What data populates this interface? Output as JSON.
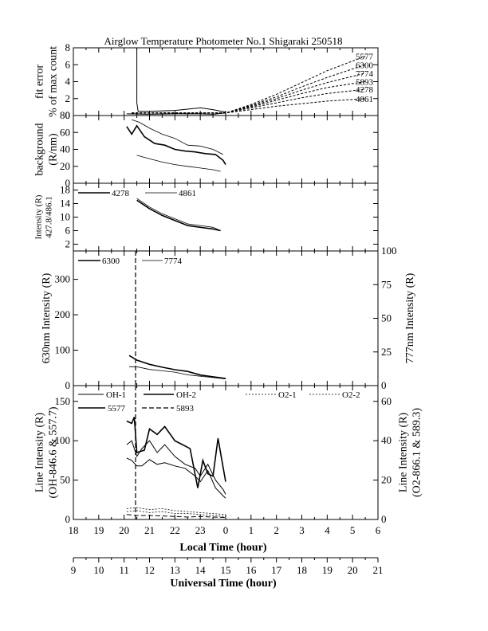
{
  "title": "Airglow Temperature Photometer No.1   Shigaraki   250518",
  "x_axes": {
    "local": {
      "label": "Local Time (hour)",
      "ticks": [
        "18",
        "19",
        "20",
        "21",
        "22",
        "23",
        "0",
        "1",
        "2",
        "3",
        "4",
        "5",
        "6"
      ]
    },
    "ut": {
      "label": "Universal Time (hour)",
      "ticks": [
        "9",
        "10",
        "11",
        "12",
        "13",
        "14",
        "15",
        "16",
        "17",
        "18",
        "19",
        "20",
        "21"
      ]
    }
  },
  "chart_data": [
    {
      "id": "fit_error",
      "type": "line",
      "ylabel": [
        "fit error",
        "% of max count"
      ],
      "ylim": [
        0,
        8
      ],
      "yticks": [
        0,
        2,
        4,
        6,
        8
      ],
      "x_range_lt": [
        18,
        30
      ],
      "series": [
        {
          "name": "5577",
          "dash": "3,2",
          "x": [
            20.3,
            21,
            22,
            23,
            24,
            25,
            26,
            27,
            28,
            29.5
          ],
          "y": [
            0.3,
            0.3,
            0.3,
            0.3,
            0.3,
            1.3,
            2.5,
            3.9,
            5.3,
            7.0
          ]
        },
        {
          "name": "6300",
          "dash": "3,2",
          "x": [
            20.3,
            21,
            22,
            23,
            24,
            25,
            26,
            27,
            28,
            29.5
          ],
          "y": [
            0.3,
            0.3,
            0.3,
            0.3,
            0.3,
            1.2,
            2.2,
            3.4,
            4.5,
            6.0
          ]
        },
        {
          "name": "7774",
          "dash": "3,2",
          "x": [
            20.3,
            21,
            22,
            23,
            24,
            25,
            26,
            27,
            28,
            29.5
          ],
          "y": [
            0.3,
            0.3,
            0.3,
            0.3,
            0.3,
            1.1,
            2.0,
            3.0,
            3.9,
            5.0
          ]
        },
        {
          "name": "5893",
          "dash": "3,2",
          "x": [
            20.3,
            21,
            22,
            23,
            24,
            25,
            26,
            27,
            28,
            29.5
          ],
          "y": [
            0.3,
            0.3,
            0.3,
            0.3,
            0.3,
            1.0,
            1.8,
            2.6,
            3.3,
            4.0
          ]
        },
        {
          "name": "4278",
          "dash": "3,2",
          "x": [
            20.3,
            21,
            22,
            23,
            24,
            25,
            26,
            27,
            28,
            29.5
          ],
          "y": [
            0.3,
            0.3,
            0.3,
            0.3,
            0.3,
            0.9,
            1.5,
            2.1,
            2.6,
            3.1
          ]
        },
        {
          "name": "4861",
          "dash": "3,2",
          "x": [
            20.3,
            21,
            22,
            23,
            24,
            25,
            26,
            27,
            28,
            29.5
          ],
          "y": [
            0.3,
            0.3,
            0.3,
            0.3,
            0.3,
            0.7,
            1.1,
            1.4,
            1.7,
            2.0
          ]
        },
        {
          "name": "",
          "dash": "",
          "x": [
            20.5,
            20.5,
            20.55,
            21,
            22,
            23,
            23.5,
            24
          ],
          "y": [
            8,
            1.5,
            0.5,
            0.5,
            0.6,
            0.9,
            0.7,
            0.4
          ]
        },
        {
          "name": "",
          "dash": "",
          "x": [
            20.1,
            21,
            22,
            23,
            23.5,
            24
          ],
          "y": [
            0.2,
            0.15,
            0.2,
            0.2,
            0.15,
            0.3
          ]
        }
      ]
    },
    {
      "id": "background",
      "type": "line",
      "ylabel": [
        "background",
        "(R/nm)"
      ],
      "ylim": [
        0,
        80
      ],
      "yticks": [
        0,
        20,
        40,
        60,
        80
      ],
      "x_range_lt": [
        18,
        30
      ],
      "series": [
        {
          "name": "",
          "width": 1.6,
          "x": [
            20.1,
            20.3,
            20.5,
            20.8,
            21.2,
            21.6,
            22.0,
            22.4,
            22.8,
            23.2,
            23.6,
            23.9,
            24.0
          ],
          "y": [
            67,
            58,
            68,
            55,
            47,
            45,
            40,
            38,
            37,
            35,
            34,
            27,
            22
          ]
        },
        {
          "name": "",
          "width": 0.8,
          "x": [
            20.3,
            20.6,
            21.0,
            21.5,
            22.0,
            22.5,
            23.0,
            23.5,
            23.9
          ],
          "y": [
            75,
            72,
            65,
            58,
            53,
            45,
            44,
            40,
            34
          ]
        },
        {
          "name": "",
          "width": 0.8,
          "x": [
            20.5,
            21.0,
            21.5,
            22.0,
            22.5,
            23.0,
            23.5,
            23.8
          ],
          "y": [
            33,
            29,
            25,
            22,
            20,
            18,
            16,
            14
          ]
        }
      ]
    },
    {
      "id": "blue_intensity",
      "type": "line",
      "ylabel": [
        "Intensity (R)",
        "427.8/486.1"
      ],
      "ylim": [
        0,
        20
      ],
      "yticks": [
        2,
        6,
        10,
        14,
        18
      ],
      "x_range_lt": [
        18,
        30
      ],
      "series": [
        {
          "name": "4278",
          "width": 1.6,
          "x": [
            20.5,
            21.0,
            21.5,
            22.0,
            22.5,
            23.0,
            23.5,
            23.8
          ],
          "y": [
            15,
            12.5,
            10.5,
            9,
            7.5,
            7,
            6.5,
            6
          ]
        },
        {
          "name": "4861",
          "width": 0.8,
          "x": [
            20.5,
            21.0,
            21.5,
            22.0,
            22.5,
            23.0,
            23.5,
            23.8
          ],
          "y": [
            15.5,
            13,
            11,
            9.5,
            8,
            7.5,
            7,
            6
          ]
        }
      ]
    },
    {
      "id": "red_intensity",
      "type": "line",
      "ylabel": [
        "630nm Intensity (R)"
      ],
      "ylabel_right": [
        "777nm Intensity (R)"
      ],
      "ylim": [
        0,
        380
      ],
      "yticks": [
        0,
        100,
        200,
        300
      ],
      "ylim_right": [
        0,
        100
      ],
      "yticks_right": [
        0,
        25,
        50,
        75,
        100
      ],
      "x_range_lt": [
        18,
        30
      ],
      "series": [
        {
          "name": "6300",
          "width": 1.6,
          "axis": "left",
          "x": [
            20.2,
            20.5,
            21.0,
            21.5,
            22.0,
            22.5,
            23.0,
            23.5,
            24.0
          ],
          "y": [
            85,
            72,
            60,
            52,
            45,
            40,
            30,
            25,
            20
          ]
        },
        {
          "name": "7774",
          "width": 0.8,
          "axis": "right",
          "x": [
            20.2,
            20.5,
            21.0,
            21.5,
            22.0,
            22.5,
            23.0,
            23.5,
            24.0
          ],
          "y": [
            14,
            14,
            12,
            11,
            10,
            8,
            7,
            6,
            5
          ]
        }
      ],
      "vline_lt": 20.45
    },
    {
      "id": "line_intensity",
      "type": "line",
      "ylabel": [
        "Line Intensity (R)",
        "(OH-846.6 & 557.7)"
      ],
      "ylabel_right": [
        "Line Intensity (R)",
        "(O2-866.1 & 589.3)"
      ],
      "ylim": [
        0,
        170
      ],
      "yticks": [
        0,
        50,
        100,
        150
      ],
      "ylim_right": [
        0,
        68
      ],
      "yticks_right": [
        0,
        20,
        40,
        60
      ],
      "x_range_lt": [
        18,
        30
      ],
      "legend": [
        "OH-1",
        "OH-2",
        "O2-1",
        "O2-2",
        "5577",
        "5893"
      ],
      "series": [
        {
          "name": "OH-1",
          "width": 1.0,
          "axis": "left",
          "x": [
            20.1,
            20.3,
            20.5,
            20.7,
            21.0,
            21.3,
            21.6,
            22.0,
            22.4,
            22.8,
            23.0,
            23.3,
            23.6,
            23.9,
            24.0
          ],
          "y": [
            78,
            75,
            68,
            68,
            76,
            70,
            72,
            68,
            65,
            55,
            48,
            62,
            40,
            30,
            27
          ]
        },
        {
          "name": "OH-2",
          "width": 1.0,
          "axis": "left",
          "x": [
            20.1,
            20.3,
            20.5,
            20.7,
            21.0,
            21.3,
            21.6,
            22.0,
            22.4,
            22.8,
            23.0,
            23.3,
            23.6,
            23.9,
            24.0
          ],
          "y": [
            95,
            100,
            80,
            90,
            100,
            85,
            95,
            80,
            70,
            65,
            55,
            70,
            50,
            38,
            32
          ]
        },
        {
          "name": "5577",
          "width": 1.6,
          "axis": "left",
          "x": [
            20.1,
            20.3,
            20.4,
            20.5,
            20.8,
            21.0,
            21.3,
            21.6,
            22.0,
            22.3,
            22.6,
            22.9,
            23.1,
            23.3,
            23.5,
            23.7,
            24.0
          ],
          "y": [
            125,
            122,
            130,
            85,
            88,
            115,
            108,
            118,
            100,
            95,
            90,
            40,
            75,
            58,
            55,
            103,
            48
          ]
        },
        {
          "name": "O2-1",
          "width": 0.8,
          "dash": "2,2",
          "axis": "right",
          "x": [
            20.1,
            20.5,
            21.0,
            21.5,
            22.0,
            22.5,
            23.0,
            23.5,
            24.0
          ],
          "y": [
            5.5,
            6,
            5,
            5.5,
            4.5,
            4,
            3.5,
            3,
            2.5
          ]
        },
        {
          "name": "O2-2",
          "width": 0.8,
          "dash": "2,2",
          "axis": "right",
          "x": [
            20.1,
            20.5,
            21.0,
            21.5,
            22.0,
            22.5,
            23.0,
            23.5,
            24.0
          ],
          "y": [
            4,
            4.5,
            3.5,
            4,
            3,
            3,
            2.5,
            2,
            1.5
          ]
        },
        {
          "name": "5893",
          "width": 1.0,
          "dash": "6,3",
          "axis": "right",
          "x": [
            20.1,
            20.5,
            21.0,
            21.5,
            22.0,
            22.5,
            23.0,
            23.5,
            24.0
          ],
          "y": [
            2.5,
            2,
            2,
            1.8,
            1.5,
            1.2,
            1.5,
            1.2,
            1
          ]
        }
      ],
      "vline_lt": 20.45
    }
  ]
}
